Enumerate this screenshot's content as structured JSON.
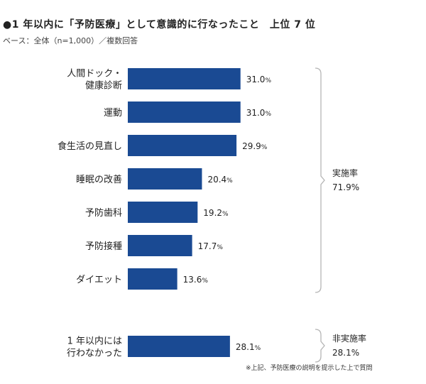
{
  "chart_data": {
    "type": "bar",
    "orientation": "horizontal",
    "title": "●1 年以内に「予防医療」として意識的に行なったこと　上位 7 位",
    "subtitle": "ベース：全体（n=1,000）／複数回答",
    "unit": "%",
    "bar_color": "#1a4a93",
    "categories": [
      [
        "人間ドック・",
        "健康診断"
      ],
      [
        "運動"
      ],
      [
        "食生活の見直し"
      ],
      [
        "睡眠の改善"
      ],
      [
        "予防歯科"
      ],
      [
        "予防接種"
      ],
      [
        "ダイエット"
      ],
      [
        "1 年以内には",
        "行わなかった"
      ]
    ],
    "values": [
      31.0,
      31.0,
      29.9,
      20.4,
      19.2,
      17.7,
      13.6,
      28.1
    ],
    "value_labels": [
      "31.0",
      "31.0",
      "29.9",
      "20.4",
      "19.2",
      "17.7",
      "13.6",
      "28.1"
    ],
    "brackets": [
      {
        "label": "実施率",
        "value": "71.9%"
      },
      {
        "label": "非実施率",
        "value": "28.1%"
      }
    ],
    "footnote": "※上記、予防医療の説明を提示した上で質問"
  }
}
